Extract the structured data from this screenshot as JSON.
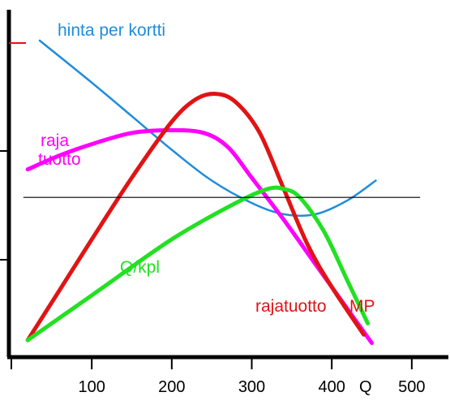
{
  "chart_data": {
    "type": "line",
    "title": "",
    "xlabel": "Q",
    "ylabel": "",
    "x_ticks": [
      100,
      200,
      300,
      400,
      500
    ],
    "xlim": [
      0,
      545
    ],
    "grid": false,
    "series": [
      {
        "name": "hinta per kortti",
        "color": "#1e8cdc",
        "points": [
          [
            35,
            100
          ],
          [
            100,
            85
          ],
          [
            150,
            73
          ],
          [
            200,
            61
          ],
          [
            250,
            50
          ],
          [
            300,
            42
          ],
          [
            340,
            38
          ],
          [
            380,
            38
          ],
          [
            420,
            43
          ],
          [
            455,
            50
          ]
        ]
      },
      {
        "name": "raja tuotto",
        "color": "#ff00ff",
        "points": [
          [
            20,
            54
          ],
          [
            60,
            59
          ],
          [
            100,
            63
          ],
          [
            150,
            67
          ],
          [
            200,
            68
          ],
          [
            240,
            67
          ],
          [
            270,
            62
          ],
          [
            300,
            51
          ],
          [
            340,
            36
          ],
          [
            380,
            20
          ],
          [
            420,
            4
          ],
          [
            450,
            -8
          ]
        ]
      },
      {
        "name": "rajatuotto MP",
        "color": "#e01414",
        "points": [
          [
            20,
            -7
          ],
          [
            60,
            11
          ],
          [
            100,
            29
          ],
          [
            150,
            51
          ],
          [
            200,
            71
          ],
          [
            230,
            79
          ],
          [
            255,
            81
          ],
          [
            280,
            78
          ],
          [
            310,
            67
          ],
          [
            340,
            47
          ],
          [
            370,
            27
          ],
          [
            400,
            12
          ],
          [
            440,
            -5
          ]
        ]
      },
      {
        "name": "Q/kpl",
        "color": "#22e022",
        "points": [
          [
            20,
            -7
          ],
          [
            100,
            9
          ],
          [
            200,
            29
          ],
          [
            280,
            42
          ],
          [
            320,
            47
          ],
          [
            340,
            47
          ],
          [
            360,
            44
          ],
          [
            390,
            32
          ],
          [
            420,
            14
          ],
          [
            445,
            -1
          ]
        ]
      },
      {
        "name": "",
        "color": "#000000",
        "points": [
          [
            15,
            44
          ],
          [
            510,
            44
          ]
        ]
      }
    ],
    "annotations": [
      {
        "text": "hinta per kortti",
        "color": "#1e8cdc"
      },
      {
        "text": "raja",
        "color": "#ff00ff"
      },
      {
        "text": "tuotto",
        "color": "#ff00ff"
      },
      {
        "text": "Q/kpl",
        "color": "#22e022"
      },
      {
        "text": "rajatuotto",
        "color": "#e01414"
      },
      {
        "text": "MP",
        "color": "#e01414"
      }
    ]
  }
}
